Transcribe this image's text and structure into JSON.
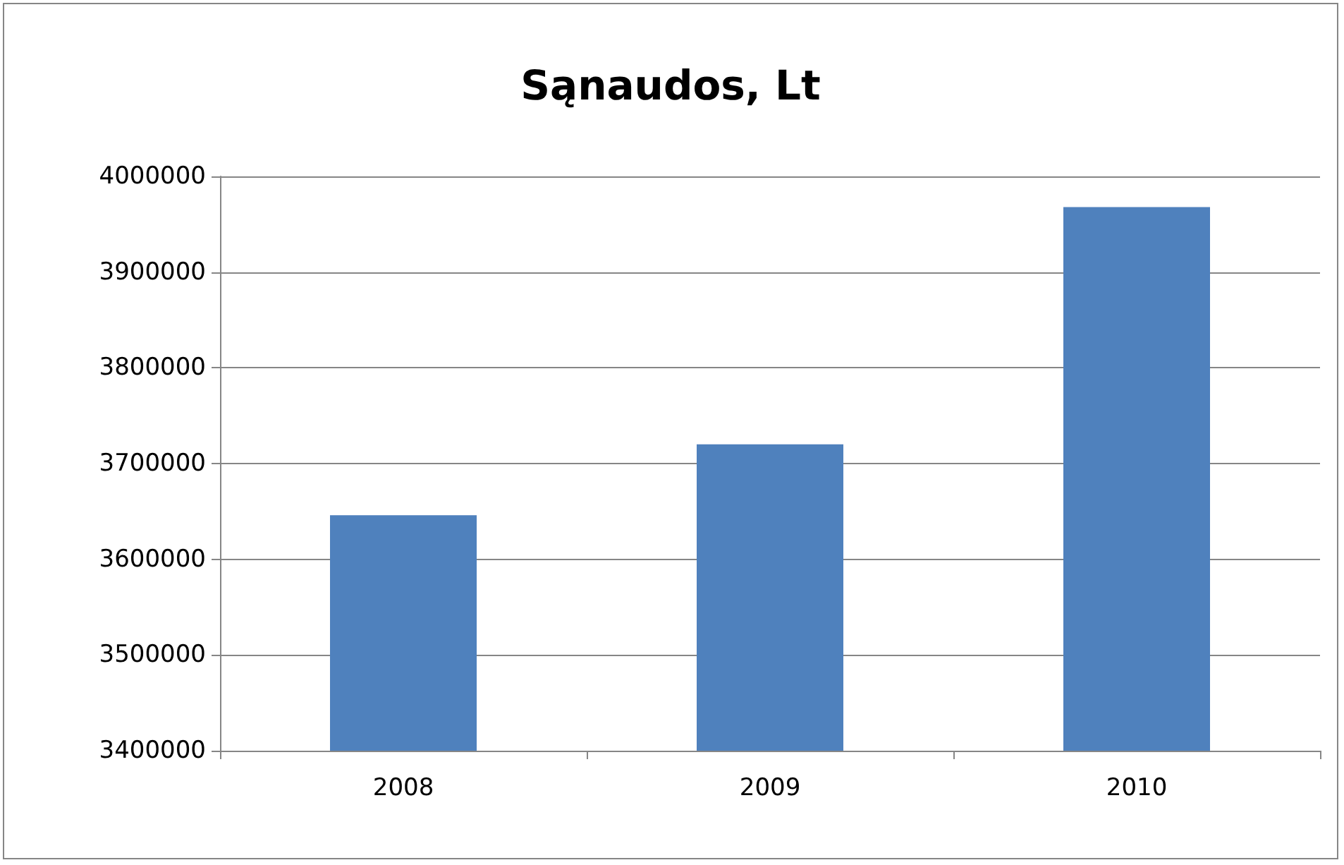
{
  "chart_data": {
    "type": "bar",
    "title": "Sąnaudos, Lt",
    "categories": [
      "2008",
      "2009",
      "2010"
    ],
    "values": [
      3646000,
      3720000,
      3968000
    ],
    "color": "#4f81bd",
    "ylim": [
      3400000,
      4000000
    ],
    "yticks": [
      3400000,
      3500000,
      3600000,
      3700000,
      3800000,
      3900000,
      4000000
    ],
    "grid": "y"
  }
}
